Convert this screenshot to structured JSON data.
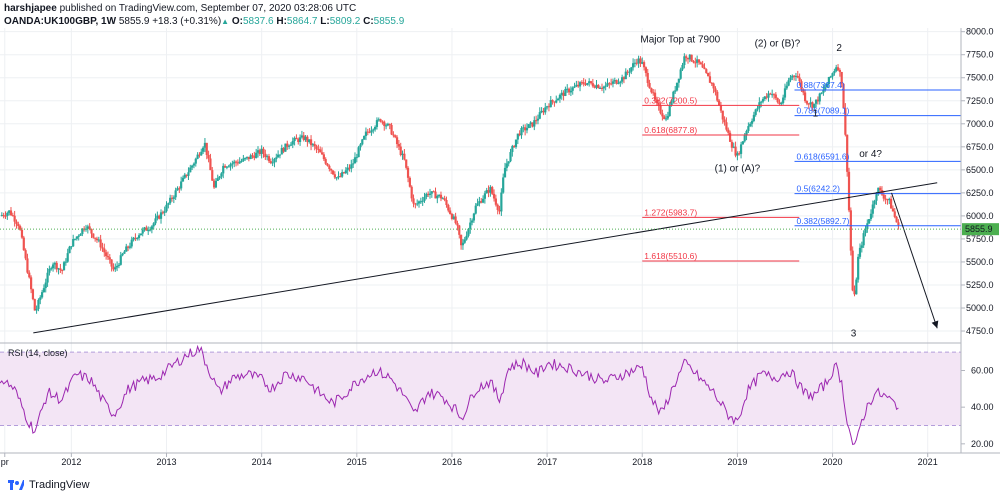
{
  "header": {
    "line1_author": "harshjapee",
    "line1_rest": " published on TradingView.com, September 07, 2020 03:28:06 UTC",
    "symbol": "OANDA:UK100GBP, 1W",
    "last": "5855.9",
    "change": "+18.3 (+0.31%)",
    "o_label": "O:",
    "o_value": "5837.6",
    "h_label": "H:",
    "h_value": "5864.7",
    "l_label": "L:",
    "l_value": "5809.2",
    "c_label": "C:",
    "c_value": "5855.9"
  },
  "footer": {
    "brand": "TradingView"
  },
  "colors": {
    "up": "#26a69a",
    "down": "#ef5350",
    "rsi": "#9c27b0",
    "rsi_band": "#f3e5f5",
    "fib_blue": "#2962ff",
    "fib_red": "#f23645",
    "current": "#4caf50"
  },
  "chart_data": {
    "type": "candlestick",
    "price_axis": {
      "ticks": [
        4750,
        5000,
        5250,
        5500,
        5750,
        6000,
        6250,
        6500,
        6750,
        7000,
        7250,
        7500,
        7750,
        8000
      ],
      "tick_labels": [
        "4750.0",
        "5000.0",
        "5250.0",
        "5500.0",
        "5750.0",
        "6000.0",
        "6250.0",
        "6500.0",
        "6750.0",
        "7000.0",
        "7250.0",
        "7500.0",
        "7750.0",
        "8000.0"
      ],
      "range": [
        4620,
        8040
      ]
    },
    "current_price": {
      "value": 5855.9,
      "label": "5855.9"
    },
    "x_axis": {
      "labels": [
        "pr",
        "2012",
        "2013",
        "2014",
        "2015",
        "2016",
        "2017",
        "2018",
        "2019",
        "2020",
        "2021"
      ],
      "years": [
        2011.3,
        2012,
        2013,
        2014,
        2015,
        2016,
        2017,
        2018,
        2019,
        2020,
        2021
      ],
      "range": [
        2011.25,
        2021.35
      ]
    },
    "price_path": [
      [
        2011.25,
        6000
      ],
      [
        2011.35,
        6050
      ],
      [
        2011.45,
        5900
      ],
      [
        2011.55,
        5350
      ],
      [
        2011.62,
        4950
      ],
      [
        2011.7,
        5200
      ],
      [
        2011.8,
        5500
      ],
      [
        2011.9,
        5400
      ],
      [
        2012.0,
        5700
      ],
      [
        2012.15,
        5900
      ],
      [
        2012.3,
        5700
      ],
      [
        2012.45,
        5400
      ],
      [
        2012.55,
        5600
      ],
      [
        2012.7,
        5800
      ],
      [
        2012.85,
        5900
      ],
      [
        2013.0,
        6100
      ],
      [
        2013.15,
        6350
      ],
      [
        2013.3,
        6600
      ],
      [
        2013.4,
        6800
      ],
      [
        2013.5,
        6300
      ],
      [
        2013.6,
        6550
      ],
      [
        2013.8,
        6600
      ],
      [
        2014.0,
        6700
      ],
      [
        2014.1,
        6600
      ],
      [
        2014.3,
        6800
      ],
      [
        2014.45,
        6850
      ],
      [
        2014.6,
        6700
      ],
      [
        2014.8,
        6400
      ],
      [
        2014.95,
        6550
      ],
      [
        2015.1,
        6900
      ],
      [
        2015.25,
        7050
      ],
      [
        2015.35,
        6950
      ],
      [
        2015.5,
        6600
      ],
      [
        2015.6,
        6100
      ],
      [
        2015.75,
        6250
      ],
      [
        2015.9,
        6200
      ],
      [
        2016.05,
        5900
      ],
      [
        2016.1,
        5650
      ],
      [
        2016.25,
        6100
      ],
      [
        2016.4,
        6300
      ],
      [
        2016.5,
        6050
      ],
      [
        2016.55,
        6500
      ],
      [
        2016.7,
        6900
      ],
      [
        2016.85,
        7000
      ],
      [
        2017.0,
        7200
      ],
      [
        2017.2,
        7350
      ],
      [
        2017.4,
        7450
      ],
      [
        2017.6,
        7400
      ],
      [
        2017.8,
        7500
      ],
      [
        2017.95,
        7700
      ],
      [
        2018.0,
        7650
      ],
      [
        2018.15,
        7200
      ],
      [
        2018.25,
        7050
      ],
      [
        2018.35,
        7400
      ],
      [
        2018.45,
        7750
      ],
      [
        2018.6,
        7650
      ],
      [
        2018.75,
        7400
      ],
      [
        2018.85,
        7050
      ],
      [
        2018.95,
        6750
      ],
      [
        2019.0,
        6650
      ],
      [
        2019.1,
        6950
      ],
      [
        2019.25,
        7250
      ],
      [
        2019.35,
        7350
      ],
      [
        2019.45,
        7200
      ],
      [
        2019.55,
        7500
      ],
      [
        2019.62,
        7550
      ],
      [
        2019.72,
        7250
      ],
      [
        2019.8,
        7200
      ],
      [
        2019.9,
        7350
      ],
      [
        2020.0,
        7550
      ],
      [
        2020.05,
        7650
      ],
      [
        2020.1,
        7450
      ],
      [
        2020.15,
        6600
      ],
      [
        2020.18,
        5900
      ],
      [
        2020.22,
        5000
      ],
      [
        2020.27,
        5550
      ],
      [
        2020.33,
        5800
      ],
      [
        2020.42,
        6100
      ],
      [
        2020.47,
        6300
      ],
      [
        2020.55,
        6200
      ],
      [
        2020.6,
        6150
      ],
      [
        2020.65,
        6000
      ],
      [
        2020.7,
        5856
      ]
    ],
    "rsi": {
      "label": "RSI (14, close)",
      "ticks": [
        20,
        40,
        60
      ],
      "tick_labels": [
        "20.00",
        "40.00",
        "60.00"
      ],
      "bands": [
        30,
        70
      ],
      "range": [
        15,
        75
      ],
      "values": [
        [
          2011.25,
          56
        ],
        [
          2011.4,
          50
        ],
        [
          2011.55,
          32
        ],
        [
          2011.62,
          27
        ],
        [
          2011.75,
          48
        ],
        [
          2011.9,
          44
        ],
        [
          2012.05,
          58
        ],
        [
          2012.2,
          55
        ],
        [
          2012.35,
          42
        ],
        [
          2012.45,
          36
        ],
        [
          2012.6,
          50
        ],
        [
          2012.75,
          54
        ],
        [
          2012.9,
          56
        ],
        [
          2013.05,
          62
        ],
        [
          2013.2,
          68
        ],
        [
          2013.35,
          72
        ],
        [
          2013.45,
          60
        ],
        [
          2013.55,
          48
        ],
        [
          2013.7,
          56
        ],
        [
          2013.85,
          58
        ],
        [
          2014.0,
          55
        ],
        [
          2014.1,
          50
        ],
        [
          2014.25,
          58
        ],
        [
          2014.45,
          56
        ],
        [
          2014.6,
          48
        ],
        [
          2014.75,
          42
        ],
        [
          2014.85,
          46
        ],
        [
          2015.0,
          54
        ],
        [
          2015.2,
          60
        ],
        [
          2015.35,
          56
        ],
        [
          2015.5,
          46
        ],
        [
          2015.6,
          36
        ],
        [
          2015.75,
          48
        ],
        [
          2015.9,
          46
        ],
        [
          2016.05,
          38
        ],
        [
          2016.1,
          34
        ],
        [
          2016.25,
          50
        ],
        [
          2016.4,
          54
        ],
        [
          2016.5,
          44
        ],
        [
          2016.6,
          62
        ],
        [
          2016.75,
          64
        ],
        [
          2016.9,
          58
        ],
        [
          2017.0,
          64
        ],
        [
          2017.2,
          62
        ],
        [
          2017.4,
          58
        ],
        [
          2017.6,
          54
        ],
        [
          2017.8,
          58
        ],
        [
          2018.0,
          62
        ],
        [
          2018.1,
          44
        ],
        [
          2018.2,
          36
        ],
        [
          2018.35,
          54
        ],
        [
          2018.45,
          64
        ],
        [
          2018.6,
          56
        ],
        [
          2018.75,
          48
        ],
        [
          2018.9,
          36
        ],
        [
          2019.0,
          32
        ],
        [
          2019.1,
          48
        ],
        [
          2019.25,
          58
        ],
        [
          2019.4,
          56
        ],
        [
          2019.55,
          60
        ],
        [
          2019.7,
          48
        ],
        [
          2019.8,
          46
        ],
        [
          2019.95,
          54
        ],
        [
          2020.0,
          60
        ],
        [
          2020.05,
          62
        ],
        [
          2020.1,
          52
        ],
        [
          2020.15,
          34
        ],
        [
          2020.2,
          22
        ],
        [
          2020.24,
          17
        ],
        [
          2020.3,
          32
        ],
        [
          2020.38,
          42
        ],
        [
          2020.45,
          48
        ],
        [
          2020.55,
          46
        ],
        [
          2020.65,
          42
        ],
        [
          2020.7,
          41
        ]
      ]
    },
    "trendline": {
      "from": [
        2011.6,
        4730
      ],
      "to": [
        2021.1,
        6360
      ]
    },
    "projection_arrow": {
      "from": [
        2020.62,
        6250
      ],
      "to": [
        2021.1,
        4780
      ]
    },
    "fib_levels": [
      {
        "label": "0.618(6591.6)",
        "value": 6591.6,
        "x1": 2019.6,
        "x2": 2021.35,
        "color": "blue"
      },
      {
        "label": "0.5(6242.2)",
        "value": 6242.2,
        "x1": 2019.6,
        "x2": 2021.35,
        "color": "blue"
      },
      {
        "label": "0.382(5892.7)",
        "value": 5892.7,
        "x1": 2019.6,
        "x2": 2021.35,
        "color": "blue"
      },
      {
        "label": "0.786(7089.1)",
        "value": 7089.1,
        "x1": 2019.6,
        "x2": 2021.35,
        "color": "blue"
      },
      {
        "label": "0.88(7367.4)",
        "value": 7367.4,
        "x1": 2019.6,
        "x2": 2021.35,
        "color": "blue"
      },
      {
        "label": "0.382(7200.5)",
        "value": 7200.5,
        "x1": 2018.0,
        "x2": 2019.65,
        "color": "red"
      },
      {
        "label": "0.618(6877.8)",
        "value": 6877.8,
        "x1": 2018.0,
        "x2": 2019.65,
        "color": "red"
      },
      {
        "label": "1.272(5983.7)",
        "value": 5983.7,
        "x1": 2018.0,
        "x2": 2019.65,
        "color": "red"
      },
      {
        "label": "1.618(5510.6)",
        "value": 5510.6,
        "x1": 2018.0,
        "x2": 2019.65,
        "color": "red"
      }
    ],
    "annotations": [
      {
        "text": "Major Top at 7900",
        "x": 2018.4,
        "y": 7880
      },
      {
        "text": "(2) or (B)?",
        "x": 2019.42,
        "y": 7840
      },
      {
        "text": "2",
        "x": 2020.07,
        "y": 7790
      },
      {
        "text": "1",
        "x": 2019.82,
        "y": 7080
      },
      {
        "text": "(1) or (A)?",
        "x": 2019.0,
        "y": 6480
      },
      {
        "text": "or 4?",
        "x": 2020.4,
        "y": 6640
      },
      {
        "text": "3",
        "x": 2020.22,
        "y": 4690
      }
    ]
  }
}
